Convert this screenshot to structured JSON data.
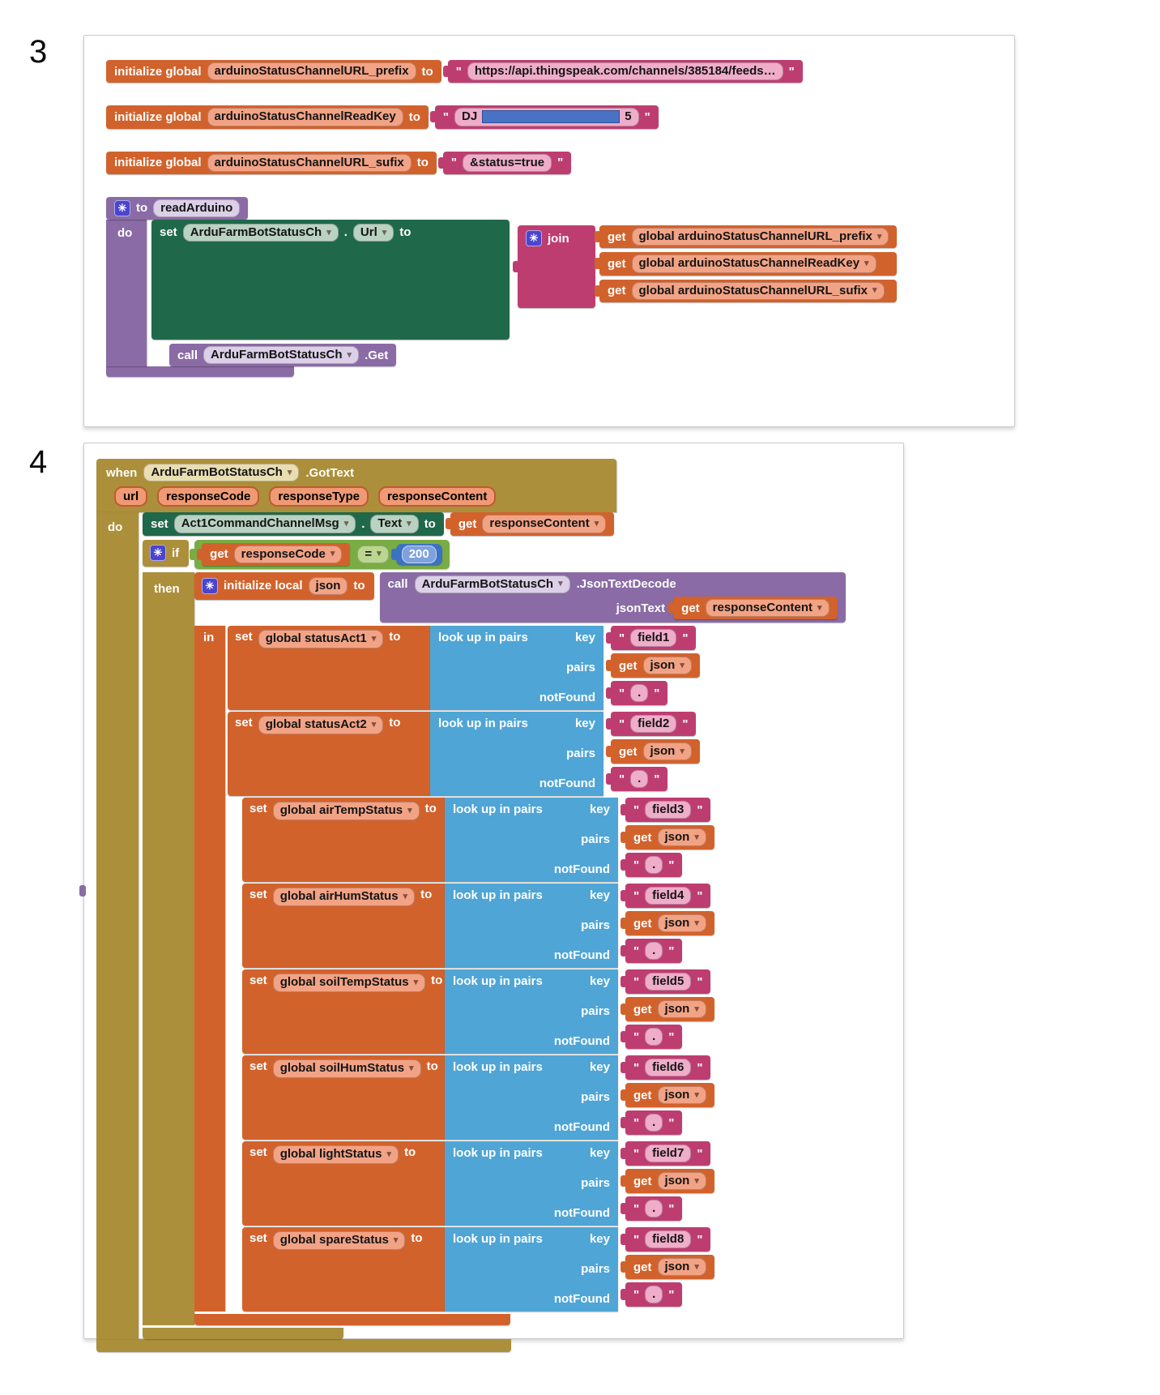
{
  "colors": {
    "variable_orange": "#d2622c",
    "text_magenta": "#be3d71",
    "list_blue": "#4fa5d5",
    "event_mustard": "#ac8f3a",
    "procedure_purple": "#8a6ba5",
    "component_green": "#20684a",
    "logic_green": "#79ac44",
    "math_blue": "#3c72c4",
    "mutator_indigo": "#4b45ce",
    "redaction_blue": "#4a72c4",
    "card_border": "#c9c9c9"
  },
  "icons": {
    "gear": "✳",
    "dropdown": "▾"
  },
  "qt": "\"",
  "panel3": {
    "index_label": "3",
    "globals": [
      {
        "kw": "initialize global",
        "name": "arduinoStatusChannelURL_prefix",
        "to": "to",
        "value": "https://api.thingspeak.com/channels/385184/feeds…"
      },
      {
        "kw": "initialize global",
        "name": "arduinoStatusChannelReadKey",
        "to": "to",
        "value_prefix": "DJ",
        "value_suffix": "5"
      },
      {
        "kw": "initialize global",
        "name": "arduinoStatusChannelURL_sufix",
        "to": "to",
        "value": "&status=true"
      }
    ],
    "procedure": {
      "to_kw": "to",
      "name": "readArduino",
      "do_kw": "do",
      "set_kw": "set",
      "component": "ArduFarmBotStatusCh",
      "dot": ".",
      "property": "Url",
      "to2_kw": "to",
      "join_kw": "join",
      "get_kw": "get",
      "join_args": [
        "global arduinoStatusChannelURL_prefix",
        "global arduinoStatusChannelReadKey",
        "global arduinoStatusChannelURL_sufix"
      ],
      "call_kw": "call",
      "call_component": "ArduFarmBotStatusCh",
      "call_method": ".Get"
    }
  },
  "panel4": {
    "index_label": "4",
    "when": {
      "kw": "when",
      "component": "ArduFarmBotStatusCh",
      "event": ".GotText",
      "params": [
        "url",
        "responseCode",
        "responseType",
        "responseContent"
      ],
      "do_kw": "do"
    },
    "set_text": {
      "set_kw": "set",
      "component": "Act1CommandChannelMsg",
      "dot": ".",
      "property": "Text",
      "to_kw": "to",
      "get_kw": "get",
      "value": "responseContent"
    },
    "if_block": {
      "if_kw": "if",
      "get_kw": "get",
      "operand": "responseCode",
      "operator": "=",
      "number": "200",
      "then_kw": "then"
    },
    "init_local": {
      "kw": "initialize local",
      "name": "json",
      "to_kw": "to",
      "call_kw": "call",
      "component": "ArduFarmBotStatusCh",
      "method": ".JsonTextDecode",
      "arg_label": "jsonText",
      "get_kw": "get",
      "arg_value": "responseContent",
      "in_kw": "in"
    },
    "lk": {
      "set_kw": "set",
      "to_kw": "to",
      "lookup": "look up in pairs",
      "key": "key",
      "pairs": "pairs",
      "notFound": "notFound",
      "get_kw": "get",
      "json": "json",
      "dot": "."
    },
    "lookups": [
      {
        "var": "global statusAct1",
        "key": "field1"
      },
      {
        "var": "global statusAct2",
        "key": "field2"
      },
      {
        "var": "global airTempStatus",
        "key": "field3"
      },
      {
        "var": "global airHumStatus",
        "key": "field4"
      },
      {
        "var": "global soilTempStatus",
        "key": "field5"
      },
      {
        "var": "global soilHumStatus",
        "key": "field6"
      },
      {
        "var": "global lightStatus",
        "key": "field7"
      },
      {
        "var": "global spareStatus",
        "key": "field8"
      }
    ]
  }
}
